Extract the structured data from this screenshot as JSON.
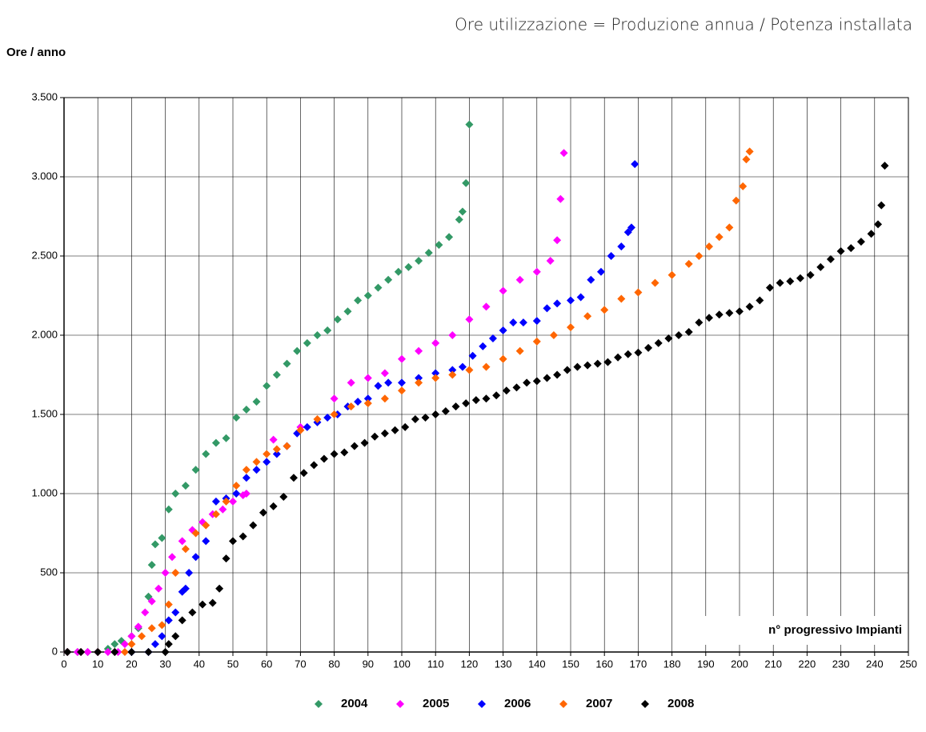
{
  "chart_data": {
    "type": "scatter",
    "title": "Ore utilizzazione = Produzione annua / Potenza installata",
    "y_label": "Ore / anno",
    "annotation": "n° progressivo Impianti",
    "xlim": [
      0,
      250
    ],
    "xticks": [
      0,
      10,
      20,
      30,
      40,
      50,
      60,
      70,
      80,
      90,
      100,
      110,
      120,
      130,
      140,
      150,
      160,
      170,
      180,
      190,
      200,
      210,
      220,
      230,
      240,
      250
    ],
    "ylim": [
      0,
      3500
    ],
    "yticks": [
      0,
      500,
      {
        "value": 1000,
        "label": "1.000"
      },
      {
        "value": 1500,
        "label": "1.500"
      },
      {
        "value": 2000,
        "label": "2.000"
      },
      {
        "value": 2500,
        "label": "2.500"
      },
      {
        "value": 3000,
        "label": "3.000"
      },
      {
        "value": 3500,
        "label": "3.500"
      }
    ],
    "grid": true,
    "legend": "bottom",
    "series": [
      {
        "name": "2004",
        "color": "#339966",
        "x": [
          1,
          4,
          7,
          10,
          13,
          15,
          17,
          20,
          22,
          25,
          26,
          27,
          29,
          31,
          33,
          36,
          39,
          42,
          45,
          48,
          51,
          54,
          57,
          60,
          63,
          66,
          69,
          72,
          75,
          78,
          81,
          84,
          87,
          90,
          93,
          96,
          99,
          102,
          105,
          108,
          111,
          114,
          117,
          118,
          119,
          120
        ],
        "values": [
          0,
          0,
          0,
          0,
          20,
          50,
          70,
          100,
          150,
          350,
          550,
          680,
          720,
          900,
          1000,
          1050,
          1150,
          1250,
          1320,
          1350,
          1480,
          1530,
          1580,
          1680,
          1750,
          1820,
          1900,
          1950,
          2000,
          2030,
          2100,
          2150,
          2220,
          2250,
          2300,
          2350,
          2400,
          2430,
          2470,
          2520,
          2570,
          2620,
          2730,
          2780,
          2960,
          3330
        ]
      },
      {
        "name": "2005",
        "color": "#ff00ff",
        "x": [
          1,
          4,
          7,
          10,
          13,
          16,
          18,
          20,
          22,
          24,
          26,
          28,
          30,
          32,
          35,
          38,
          41,
          44,
          47,
          50,
          53,
          54,
          62,
          70,
          80,
          85,
          90,
          95,
          100,
          105,
          110,
          115,
          120,
          125,
          130,
          135,
          140,
          144,
          146,
          147,
          148
        ],
        "values": [
          0,
          0,
          0,
          0,
          0,
          0,
          50,
          100,
          160,
          250,
          320,
          400,
          500,
          600,
          700,
          770,
          820,
          870,
          900,
          950,
          990,
          1000,
          1340,
          1420,
          1600,
          1700,
          1730,
          1760,
          1850,
          1900,
          1950,
          2000,
          2100,
          2180,
          2280,
          2350,
          2400,
          2470,
          2600,
          2860,
          3150
        ]
      },
      {
        "name": "2006",
        "color": "#0000ff",
        "x": [
          1,
          5,
          10,
          15,
          20,
          25,
          27,
          29,
          31,
          33,
          35,
          36,
          37,
          39,
          42,
          45,
          48,
          51,
          54,
          57,
          60,
          63,
          66,
          69,
          72,
          75,
          78,
          81,
          84,
          87,
          90,
          93,
          96,
          100,
          105,
          110,
          115,
          118,
          121,
          124,
          127,
          130,
          133,
          136,
          140,
          143,
          146,
          150,
          153,
          156,
          159,
          162,
          165,
          167,
          168,
          169
        ],
        "values": [
          0,
          0,
          0,
          0,
          0,
          0,
          50,
          100,
          200,
          250,
          380,
          400,
          500,
          600,
          700,
          950,
          970,
          1000,
          1100,
          1150,
          1200,
          1250,
          1300,
          1380,
          1420,
          1450,
          1480,
          1500,
          1550,
          1580,
          1600,
          1680,
          1700,
          1700,
          1730,
          1760,
          1780,
          1800,
          1870,
          1930,
          1980,
          2030,
          2080,
          2080,
          2090,
          2170,
          2200,
          2220,
          2240,
          2350,
          2400,
          2500,
          2560,
          2650,
          2680,
          3080
        ]
      },
      {
        "name": "2007",
        "color": "#ff6600",
        "x": [
          1,
          5,
          10,
          15,
          18,
          20,
          23,
          26,
          29,
          31,
          33,
          36,
          39,
          42,
          45,
          48,
          51,
          54,
          57,
          60,
          63,
          66,
          70,
          75,
          80,
          85,
          90,
          95,
          100,
          105,
          110,
          115,
          120,
          125,
          130,
          135,
          140,
          145,
          150,
          155,
          160,
          165,
          170,
          175,
          180,
          185,
          188,
          191,
          194,
          197,
          199,
          201,
          202,
          203
        ],
        "values": [
          0,
          0,
          0,
          0,
          0,
          50,
          100,
          150,
          170,
          300,
          500,
          650,
          750,
          800,
          870,
          950,
          1050,
          1150,
          1200,
          1250,
          1280,
          1300,
          1400,
          1470,
          1500,
          1550,
          1570,
          1600,
          1650,
          1700,
          1730,
          1750,
          1780,
          1800,
          1850,
          1900,
          1960,
          2000,
          2050,
          2120,
          2160,
          2230,
          2270,
          2330,
          2380,
          2450,
          2500,
          2560,
          2620,
          2680,
          2850,
          2940,
          3110,
          3160
        ]
      },
      {
        "name": "2008",
        "color": "#000000",
        "x": [
          1,
          5,
          10,
          15,
          20,
          25,
          30,
          31,
          33,
          35,
          38,
          41,
          44,
          46,
          48,
          50,
          53,
          56,
          59,
          62,
          65,
          68,
          71,
          74,
          77,
          80,
          83,
          86,
          89,
          92,
          95,
          98,
          101,
          104,
          107,
          110,
          113,
          116,
          119,
          122,
          125,
          128,
          131,
          134,
          137,
          140,
          143,
          146,
          149,
          152,
          155,
          158,
          161,
          164,
          167,
          170,
          173,
          176,
          179,
          182,
          185,
          188,
          191,
          194,
          197,
          200,
          203,
          206,
          209,
          212,
          215,
          218,
          221,
          224,
          227,
          230,
          233,
          236,
          239,
          241,
          242,
          243
        ],
        "values": [
          0,
          0,
          0,
          0,
          0,
          0,
          0,
          50,
          100,
          200,
          250,
          300,
          310,
          400,
          590,
          700,
          730,
          800,
          880,
          920,
          980,
          1100,
          1130,
          1180,
          1220,
          1250,
          1260,
          1300,
          1320,
          1360,
          1380,
          1400,
          1420,
          1470,
          1480,
          1500,
          1520,
          1550,
          1570,
          1590,
          1600,
          1620,
          1650,
          1670,
          1700,
          1710,
          1730,
          1750,
          1780,
          1800,
          1810,
          1820,
          1830,
          1860,
          1880,
          1890,
          1920,
          1950,
          1980,
          2000,
          2020,
          2080,
          2110,
          2130,
          2140,
          2150,
          2180,
          2220,
          2300,
          2330,
          2340,
          2360,
          2380,
          2430,
          2480,
          2530,
          2550,
          2590,
          2640,
          2700,
          2820,
          3070
        ]
      }
    ]
  }
}
